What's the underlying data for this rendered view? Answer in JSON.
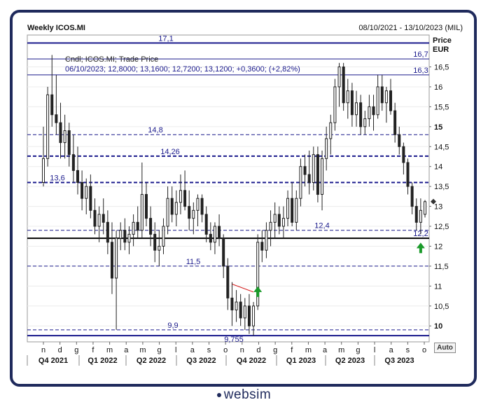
{
  "header": {
    "title": "Weekly ICOS.MI",
    "date_range": "08/10/2021 - 13/10/2023 (MIL)",
    "price_label": "Price",
    "currency_label": "EUR"
  },
  "info": {
    "line1": "Cndl; ICOS.MI; Trade Price",
    "line2": "06/10/2023; 12,8000; 13,1600; 12,7200; 13,1200; +0,3600; (+2,82%)"
  },
  "auto_button_label": "Auto",
  "logo_text": "websim",
  "colors": {
    "frame": "#1f2a5c",
    "level_line": "#1a1a8c",
    "candle": "#222222",
    "arrow": "#1a9a2a",
    "trendline": "#d42020"
  },
  "chart_data": {
    "type": "candlestick",
    "ylim": [
      9.6,
      17.3
    ],
    "y_ticks": [
      "10",
      "10,5",
      "11",
      "11,5",
      "12",
      "12,5",
      "13",
      "13,5",
      "14",
      "14,5",
      "15",
      "15,5",
      "16",
      "16,5"
    ],
    "y_tick_values": [
      10,
      10.5,
      11,
      11.5,
      12,
      12.5,
      13,
      13.5,
      14,
      14.5,
      15,
      15.5,
      16,
      16.5
    ],
    "x_month_ticks": [
      "n",
      "d",
      "g",
      "f",
      "m",
      "a",
      "m",
      "g",
      "l",
      "a",
      "s",
      "o",
      "n",
      "d",
      "g",
      "f",
      "m",
      "a",
      "m",
      "g",
      "l",
      "a",
      "s",
      "o"
    ],
    "x_quarters": [
      "Q4 2021",
      "Q1 2022",
      "Q2 2022",
      "Q3 2022",
      "Q4 2022",
      "Q1 2023",
      "Q2 2023",
      "Q3 2023"
    ],
    "levels": [
      {
        "value": 17.1,
        "label": "17,1",
        "style": "solid-thick",
        "label_pos": "mid-left"
      },
      {
        "value": 16.7,
        "label": "16,7",
        "style": "solid-thin",
        "label_pos": "right"
      },
      {
        "value": 16.3,
        "label": "16,3",
        "style": "solid-thin",
        "label_pos": "right"
      },
      {
        "value": 14.8,
        "label": "14,8",
        "style": "dashed",
        "label_pos": "left-center"
      },
      {
        "value": 14.26,
        "label": "14,26",
        "style": "dashed-thick",
        "label_pos": "left-center"
      },
      {
        "value": 13.6,
        "label": "13,6",
        "style": "dashed-thick",
        "label_pos": "left"
      },
      {
        "value": 12.4,
        "label": "12,4",
        "style": "dashed",
        "label_pos": "center"
      },
      {
        "value": 12.2,
        "label": "12,2",
        "style": "solid-black",
        "label_pos": "right"
      },
      {
        "value": 11.5,
        "label": "11,5",
        "style": "dashed",
        "label_pos": "left-center"
      },
      {
        "value": 9.9,
        "label": "9,9",
        "style": "dashed",
        "label_pos": "left-center"
      },
      {
        "value": 9.755,
        "label": "9,755",
        "style": "solid-thick",
        "label_pos": "center"
      }
    ],
    "last_close": 13.12,
    "candles": [
      [
        13.6,
        15.0,
        13.5,
        14.2
      ],
      [
        14.2,
        16.0,
        14.0,
        15.8
      ],
      [
        15.8,
        16.8,
        15.0,
        15.3
      ],
      [
        15.3,
        16.3,
        14.8,
        15.1
      ],
      [
        15.1,
        15.6,
        14.2,
        14.6
      ],
      [
        14.6,
        15.3,
        14.2,
        14.9
      ],
      [
        14.9,
        15.1,
        14.0,
        14.3
      ],
      [
        14.3,
        14.8,
        13.6,
        13.9
      ],
      [
        13.9,
        14.5,
        13.3,
        13.6
      ],
      [
        13.6,
        13.9,
        12.9,
        13.2
      ],
      [
        13.2,
        13.7,
        12.8,
        13.5
      ],
      [
        13.5,
        13.8,
        12.7,
        12.9
      ],
      [
        12.9,
        13.2,
        12.3,
        12.5
      ],
      [
        12.5,
        13.0,
        12.1,
        12.8
      ],
      [
        12.8,
        13.2,
        12.3,
        12.6
      ],
      [
        12.6,
        12.9,
        11.8,
        12.1
      ],
      [
        12.1,
        12.6,
        10.8,
        11.2
      ],
      [
        11.2,
        12.4,
        9.9,
        12.2
      ],
      [
        12.2,
        12.6,
        11.9,
        12.4
      ],
      [
        12.4,
        12.7,
        11.9,
        12.1
      ],
      [
        12.1,
        12.5,
        11.8,
        12.3
      ],
      [
        12.3,
        12.8,
        12.0,
        12.6
      ],
      [
        12.6,
        13.0,
        12.2,
        12.4
      ],
      [
        12.4,
        14.1,
        12.2,
        13.3
      ],
      [
        13.3,
        13.6,
        12.5,
        12.7
      ],
      [
        12.7,
        13.0,
        12.0,
        12.3
      ],
      [
        12.3,
        12.6,
        11.6,
        11.9
      ],
      [
        11.9,
        12.4,
        11.5,
        12.0
      ],
      [
        12.0,
        12.7,
        11.8,
        12.5
      ],
      [
        12.5,
        13.5,
        12.3,
        13.2
      ],
      [
        13.2,
        13.5,
        12.6,
        12.8
      ],
      [
        12.8,
        13.4,
        12.5,
        13.1
      ],
      [
        13.1,
        13.8,
        12.8,
        13.4
      ],
      [
        13.4,
        13.9,
        12.9,
        13.0
      ],
      [
        13.0,
        13.4,
        12.4,
        12.7
      ],
      [
        12.7,
        13.1,
        12.3,
        12.9
      ],
      [
        12.9,
        13.3,
        12.5,
        13.2
      ],
      [
        13.2,
        13.3,
        12.6,
        12.8
      ],
      [
        12.8,
        13.0,
        12.1,
        12.3
      ],
      [
        12.3,
        12.6,
        11.9,
        12.1
      ],
      [
        12.1,
        12.6,
        11.8,
        12.5
      ],
      [
        12.5,
        12.8,
        12.0,
        12.2
      ],
      [
        12.2,
        12.3,
        11.2,
        11.5
      ],
      [
        11.5,
        11.7,
        10.4,
        10.7
      ],
      [
        10.7,
        11.1,
        10.0,
        10.4
      ],
      [
        10.4,
        10.9,
        10.1,
        10.6
      ],
      [
        10.6,
        10.8,
        10.0,
        10.2
      ],
      [
        10.2,
        10.7,
        9.9,
        10.5
      ],
      [
        10.5,
        10.8,
        9.8,
        10.0
      ],
      [
        10.0,
        10.6,
        9.755,
        10.5
      ],
      [
        10.5,
        12.3,
        10.4,
        12.1
      ],
      [
        12.1,
        12.4,
        11.6,
        11.9
      ],
      [
        11.9,
        12.6,
        11.7,
        12.4
      ],
      [
        12.4,
        12.9,
        12.0,
        12.6
      ],
      [
        12.6,
        13.1,
        12.2,
        12.8
      ],
      [
        12.8,
        13.0,
        12.3,
        12.5
      ],
      [
        12.5,
        13.0,
        12.2,
        12.7
      ],
      [
        12.7,
        13.4,
        12.5,
        13.2
      ],
      [
        13.2,
        13.6,
        12.5,
        12.6
      ],
      [
        12.6,
        13.4,
        12.4,
        13.2
      ],
      [
        13.2,
        14.2,
        13.0,
        14.0
      ],
      [
        14.0,
        14.3,
        13.5,
        13.8
      ],
      [
        13.8,
        14.4,
        13.3,
        13.6
      ],
      [
        13.6,
        14.5,
        13.4,
        14.3
      ],
      [
        14.3,
        14.5,
        13.1,
        13.3
      ],
      [
        13.3,
        14.4,
        12.9,
        14.2
      ],
      [
        14.2,
        15.0,
        13.9,
        14.7
      ],
      [
        14.7,
        15.3,
        14.3,
        15.1
      ],
      [
        15.1,
        16.2,
        14.9,
        16.0
      ],
      [
        16.0,
        16.6,
        15.5,
        16.5
      ],
      [
        16.5,
        16.6,
        15.4,
        15.6
      ],
      [
        15.6,
        16.2,
        15.2,
        15.9
      ],
      [
        15.9,
        16.1,
        15.0,
        15.3
      ],
      [
        15.3,
        15.9,
        15.0,
        15.6
      ],
      [
        15.6,
        15.8,
        14.8,
        15.0
      ],
      [
        15.0,
        15.4,
        14.8,
        15.2
      ],
      [
        15.2,
        15.8,
        15.0,
        15.5
      ],
      [
        15.5,
        15.8,
        14.9,
        15.3
      ],
      [
        15.3,
        16.3,
        15.2,
        16.0
      ],
      [
        16.0,
        16.3,
        15.4,
        15.6
      ],
      [
        15.6,
        16.0,
        15.1,
        15.9
      ],
      [
        15.9,
        16.2,
        15.3,
        15.4
      ],
      [
        15.4,
        15.6,
        14.6,
        14.8
      ],
      [
        14.8,
        15.0,
        14.3,
        14.5
      ],
      [
        14.5,
        14.6,
        13.8,
        14.1
      ],
      [
        14.1,
        14.2,
        13.3,
        13.5
      ],
      [
        13.5,
        13.6,
        12.8,
        13.0
      ],
      [
        13.0,
        13.2,
        12.4,
        12.6
      ],
      [
        12.6,
        13.2,
        12.3,
        12.9
      ],
      [
        12.8,
        13.16,
        12.72,
        13.12
      ]
    ],
    "trendline": {
      "from_index": 44,
      "to_index": 49,
      "start_value": 11.05,
      "end_value": 10.85
    },
    "arrows_up": [
      {
        "index": 50,
        "value": 10.85
      },
      {
        "index": 88,
        "value": 11.95
      }
    ]
  }
}
